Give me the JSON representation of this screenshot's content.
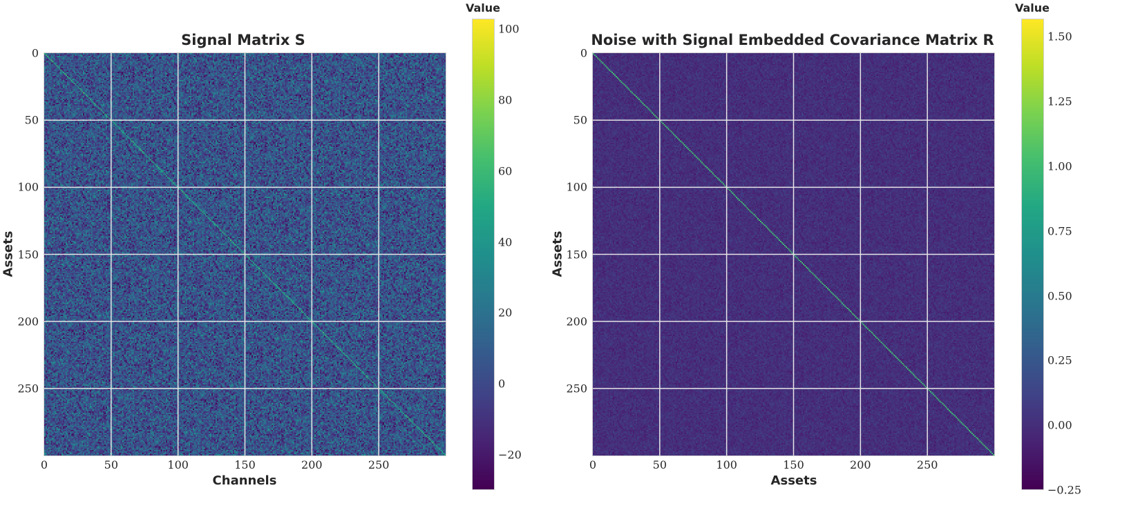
{
  "chart_data": [
    {
      "type": "heatmap",
      "title": "Signal Matrix S",
      "xlabel": "Channels",
      "ylabel": "Assets",
      "xlim": [
        0,
        300
      ],
      "ylim": [
        300,
        0
      ],
      "x_ticks": [
        "0",
        "50",
        "100",
        "150",
        "200",
        "250"
      ],
      "y_ticks": [
        "0",
        "50",
        "100",
        "150",
        "200",
        "250"
      ],
      "rows": 300,
      "cols": 300,
      "colormap": "viridis",
      "colorbar": {
        "title": "Value",
        "range": [
          -30,
          103
        ],
        "ticks": [
          "100",
          "80",
          "60",
          "40",
          "20",
          "0",
          "−20"
        ],
        "tick_values": [
          100,
          80,
          60,
          40,
          20,
          0,
          -20
        ]
      },
      "background_mean": 5,
      "background_spread": 14,
      "diagonal_value": 50,
      "grid": true
    },
    {
      "type": "heatmap",
      "title": "Noise with Signal Embedded Covariance Matrix R",
      "xlabel": "Assets",
      "ylabel": "Assets",
      "xlim": [
        0,
        300
      ],
      "ylim": [
        300,
        0
      ],
      "x_ticks": [
        "0",
        "50",
        "100",
        "150",
        "200",
        "250"
      ],
      "y_ticks": [
        "0",
        "50",
        "100",
        "150",
        "200",
        "250"
      ],
      "rows": 300,
      "cols": 300,
      "colormap": "viridis",
      "colorbar": {
        "title": "Value",
        "range": [
          -0.25,
          1.57
        ],
        "ticks": [
          "1.50",
          "1.25",
          "1.00",
          "0.75",
          "0.50",
          "0.25",
          "0.00",
          "−0.25"
        ],
        "tick_values": [
          1.5,
          1.25,
          1.0,
          0.75,
          0.5,
          0.25,
          0.0,
          -0.25
        ]
      },
      "background_mean": 0.0,
      "background_spread": 0.05,
      "diagonal_value": 1.0,
      "grid": true
    }
  ]
}
